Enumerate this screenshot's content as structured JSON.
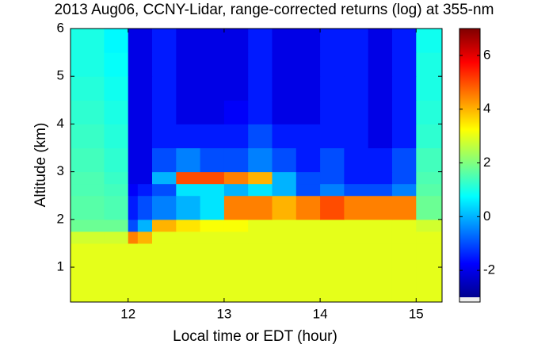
{
  "chart_data": {
    "type": "heatmap",
    "title": "2013 Aug06, CCNY-Lidar, range-corrected returns (log) at 355-nm",
    "x_label": "Local time or EDT (hour)",
    "y_label": "Altitude (km)",
    "xlim": [
      11.4,
      15.27
    ],
    "xticks": [
      12,
      13,
      14,
      15
    ],
    "ylim": [
      0.27,
      6
    ],
    "yticks": [
      1,
      2,
      3,
      4,
      5,
      6
    ],
    "clim": [
      -3,
      7
    ],
    "cticks": [
      -2,
      0,
      2,
      4,
      6
    ],
    "colormap": "jet",
    "x_edges": [
      11.4,
      11.75,
      12,
      12.1,
      12.25,
      12.5,
      12.75,
      13,
      13.25,
      13.5,
      13.75,
      14,
      14.25,
      14.5,
      14.75,
      15,
      15.27
    ],
    "y_edges": [
      0.27,
      1,
      1.5,
      1.75,
      2,
      2.5,
      2.75,
      3,
      3.5,
      4,
      4.5,
      5,
      5.5,
      6
    ],
    "z": [
      [
        3,
        3,
        3,
        3,
        3,
        3,
        3,
        3,
        3,
        3,
        3,
        3,
        3,
        3,
        3,
        3
      ],
      [
        3,
        3,
        3,
        3,
        3,
        3,
        3,
        3,
        3,
        3,
        3,
        3,
        3,
        3,
        3,
        3
      ],
      [
        2.8,
        2.8,
        4.5,
        4,
        3,
        3,
        3,
        3,
        3,
        3,
        3,
        3,
        3,
        3,
        3,
        3
      ],
      [
        1.8,
        1.8,
        -1,
        0,
        4,
        3.5,
        3.2,
        3.2,
        3,
        3,
        3,
        3,
        3,
        3,
        3,
        2.8
      ],
      [
        1.6,
        1.5,
        -1.5,
        -1,
        -0.5,
        0,
        0.5,
        4.5,
        4.5,
        4,
        4.5,
        5,
        4.5,
        4.5,
        4.5,
        1.8
      ],
      [
        1.5,
        1.4,
        -1.8,
        -1.5,
        -1,
        0.5,
        0.5,
        0,
        0.5,
        0,
        -1,
        -0.5,
        -1,
        -1,
        -0.5,
        1.6
      ],
      [
        1.5,
        1.3,
        -2,
        -2,
        0,
        5,
        5,
        4.5,
        4,
        0,
        -1,
        -1,
        -1.5,
        -1.5,
        -1,
        1.5
      ],
      [
        1.4,
        1.2,
        -2,
        -2,
        -1,
        -0.5,
        -1,
        -1,
        -0.5,
        -1,
        -1.5,
        -1,
        -1.5,
        -1.5,
        -1,
        1.4
      ],
      [
        1.3,
        1.1,
        -2,
        -2,
        -1.5,
        -1.5,
        -1.5,
        -1.5,
        -1,
        -1.5,
        -1.5,
        -1.5,
        -1.5,
        -2,
        -1.5,
        1.2
      ],
      [
        1.2,
        1,
        -2,
        -2,
        -1.5,
        -2,
        -2,
        -1.8,
        -1.5,
        -2,
        -2,
        -1.5,
        -1.5,
        -2,
        -1.5,
        1.1
      ],
      [
        1.1,
        0.9,
        -2,
        -2,
        -1.5,
        -2,
        -2,
        -2,
        -1.5,
        -2,
        -2,
        -1.5,
        -1.5,
        -2,
        -1.5,
        1
      ],
      [
        1,
        0.8,
        -2,
        -2,
        -1.5,
        -2,
        -2,
        -2,
        -1.5,
        -2,
        -2,
        -1.5,
        -1.5,
        -2,
        -1.5,
        1
      ],
      [
        1,
        0.7,
        -2,
        -2,
        -1.5,
        -2,
        -2,
        -2,
        -1.5,
        -2,
        -2,
        -1.5,
        -1.5,
        -2,
        -1.5,
        0.9
      ]
    ]
  }
}
